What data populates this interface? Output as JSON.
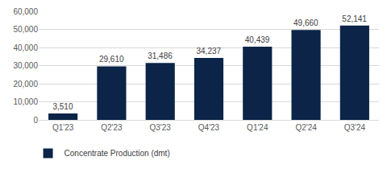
{
  "chart_data": {
    "type": "bar",
    "categories": [
      "Q1'23",
      "Q2'23",
      "Q3'23",
      "Q4'23",
      "Q1'24",
      "Q2'24",
      "Q3'24"
    ],
    "series": [
      {
        "name": "Concentrate Production (dmt)",
        "color": "#0b2447",
        "values": [
          3510,
          29610,
          31486,
          34237,
          40439,
          49660,
          52141
        ],
        "value_labels": [
          "3,510",
          "29,610",
          "31,486",
          "34,237",
          "40,439",
          "49,660",
          "52,141"
        ]
      }
    ],
    "ylim": [
      0,
      60000
    ],
    "yticks": [
      0,
      {
        "value": 10000,
        "label": "10,000"
      },
      {
        "value": 20000,
        "label": "20,000"
      },
      {
        "value": 30000,
        "label": "30,000"
      },
      {
        "value": 40000,
        "label": "40,000"
      },
      {
        "value": 50000,
        "label": "50,000"
      },
      {
        "value": 60000,
        "label": "60,000"
      }
    ],
    "grid": true,
    "data_labels": true,
    "legend": "bottom"
  }
}
